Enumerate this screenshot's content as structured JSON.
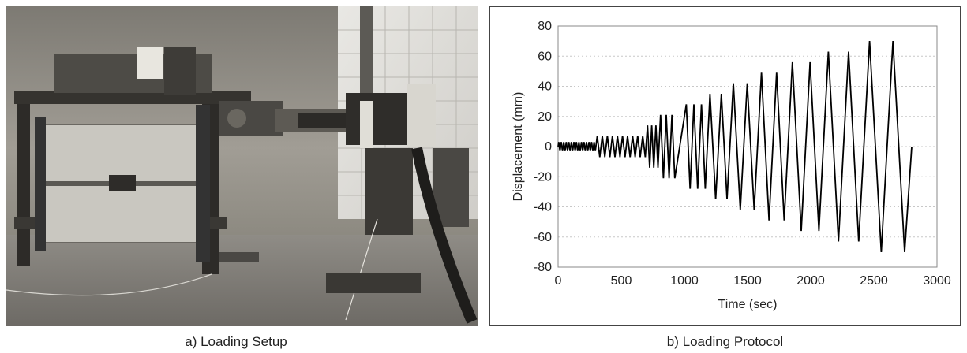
{
  "photo": {
    "caption": "a) Loading Setup"
  },
  "chart_data": {
    "type": "line",
    "caption": "b) Loading Protocol",
    "xlabel": "Time (sec)",
    "ylabel": "Displacement (mm)",
    "xlim": [
      0,
      3000
    ],
    "ylim": [
      -80,
      80
    ],
    "xticks": [
      0,
      500,
      1000,
      1500,
      2000,
      2500,
      3000
    ],
    "yticks": [
      80,
      60,
      40,
      20,
      0,
      -20,
      -40,
      -60,
      -80
    ],
    "grid": "horizontal dotted",
    "line_color": "#000000",
    "stages": [
      {
        "start": 0,
        "cycles": 15,
        "amplitude": 3,
        "period": 20
      },
      {
        "start": 300,
        "cycles": 10,
        "amplitude": 7,
        "period": 40
      },
      {
        "start": 700,
        "cycles": 3,
        "amplitude": 14,
        "period": 33
      },
      {
        "start": 800,
        "cycles": 3,
        "amplitude": 21,
        "period": 45
      },
      {
        "start": 1000,
        "cycles": 3,
        "amplitude": 28,
        "period": 60
      },
      {
        "start": 1180,
        "cycles": 2,
        "amplitude": 35,
        "period": 90
      },
      {
        "start": 1360,
        "cycles": 2,
        "amplitude": 42,
        "period": 110
      },
      {
        "start": 1580,
        "cycles": 2,
        "amplitude": 49,
        "period": 120
      },
      {
        "start": 1820,
        "cycles": 2,
        "amplitude": 56,
        "period": 140
      },
      {
        "start": 2100,
        "cycles": 2,
        "amplitude": 63,
        "period": 160
      },
      {
        "start": 2420,
        "cycles": 2,
        "amplitude": 70,
        "period": 185
      }
    ],
    "end_time": 2800
  }
}
